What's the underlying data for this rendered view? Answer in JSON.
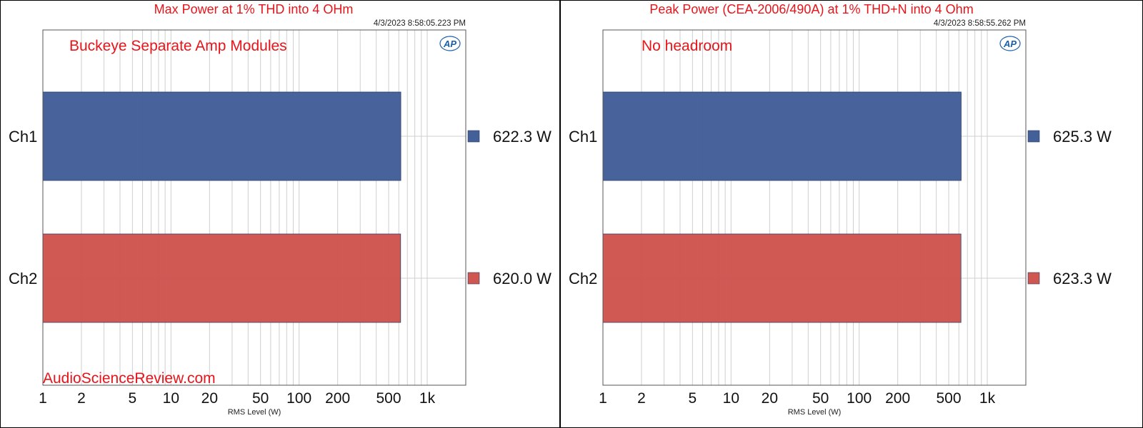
{
  "colors": {
    "title": "#e8141a",
    "ch1": "#44609a",
    "ch2": "#cf5651",
    "grid": "#cfcfcf",
    "frame": "#000000"
  },
  "chart_data": [
    {
      "type": "bar",
      "orientation": "horizontal",
      "title": "Max Power at 1% THD into 4 OHm",
      "timestamp": "4/3/2023 8:58:05.223 PM",
      "annotation": "Buckeye Separate Amp Modules",
      "watermark": "AudioScienceReview.com",
      "logo": "AP",
      "xlabel": "RMS Level (W)",
      "xscale": "log",
      "xlim": [
        1,
        2000
      ],
      "xticks": [
        1,
        2,
        5,
        10,
        20,
        50,
        100,
        200,
        500,
        1000
      ],
      "xtick_labels": [
        "1",
        "2",
        "5",
        "10",
        "20",
        "50",
        "100",
        "200",
        "500",
        "1k"
      ],
      "grid": true,
      "categories": [
        "Ch1",
        "Ch2"
      ],
      "values": [
        622.3,
        620.0
      ],
      "value_labels": [
        "622.3  W",
        "620.0  W"
      ]
    },
    {
      "type": "bar",
      "orientation": "horizontal",
      "title": "Peak Power (CEA-2006/490A) at 1% THD+N into 4 Ohm",
      "timestamp": "4/3/2023 8:58:55.262 PM",
      "annotation": "No headroom",
      "logo": "AP",
      "xlabel": "RMS Level (W)",
      "xscale": "log",
      "xlim": [
        1,
        2000
      ],
      "xticks": [
        1,
        2,
        5,
        10,
        20,
        50,
        100,
        200,
        500,
        1000
      ],
      "xtick_labels": [
        "1",
        "2",
        "5",
        "10",
        "20",
        "50",
        "100",
        "200",
        "500",
        "1k"
      ],
      "grid": true,
      "categories": [
        "Ch1",
        "Ch2"
      ],
      "values": [
        625.3,
        623.3
      ],
      "value_labels": [
        "625.3  W",
        "623.3  W"
      ]
    }
  ]
}
